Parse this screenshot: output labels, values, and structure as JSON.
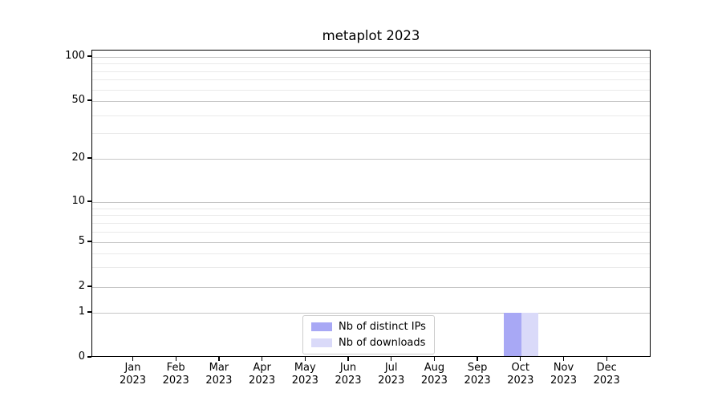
{
  "chart_data": {
    "type": "bar",
    "title": "metaplot 2023",
    "xlabel": "",
    "ylabel": "",
    "yscale": "symlog",
    "yticks": [
      0,
      1,
      2,
      5,
      10,
      20,
      50,
      100
    ],
    "ylim": [
      0,
      113
    ],
    "grid": {
      "horizontal_major": true,
      "horizontal_minor": true,
      "vertical": false
    },
    "categories": [
      {
        "month": "Jan",
        "year": "2023"
      },
      {
        "month": "Feb",
        "year": "2023"
      },
      {
        "month": "Mar",
        "year": "2023"
      },
      {
        "month": "Apr",
        "year": "2023"
      },
      {
        "month": "May",
        "year": "2023"
      },
      {
        "month": "Jun",
        "year": "2023"
      },
      {
        "month": "Jul",
        "year": "2023"
      },
      {
        "month": "Aug",
        "year": "2023"
      },
      {
        "month": "Sep",
        "year": "2023"
      },
      {
        "month": "Oct",
        "year": "2023"
      },
      {
        "month": "Nov",
        "year": "2023"
      },
      {
        "month": "Dec",
        "year": "2023"
      }
    ],
    "series": [
      {
        "name": "Nb of distinct IPs",
        "color": "#a8a8f5",
        "values": [
          0,
          0,
          0,
          0,
          0,
          0,
          0,
          0,
          0,
          1,
          0,
          0
        ]
      },
      {
        "name": "Nb of downloads",
        "color": "#dadaf9",
        "values": [
          0,
          0,
          0,
          0,
          0,
          0,
          0,
          0,
          0,
          1,
          0,
          0
        ]
      }
    ],
    "legend": {
      "position": "lower center",
      "entries": [
        "Nb of distinct IPs",
        "Nb of downloads"
      ]
    },
    "colors": {
      "major_grid": "#c6c6c6",
      "minor_grid": "#eaeaea",
      "axis": "#000000",
      "background": "#ffffff"
    }
  }
}
